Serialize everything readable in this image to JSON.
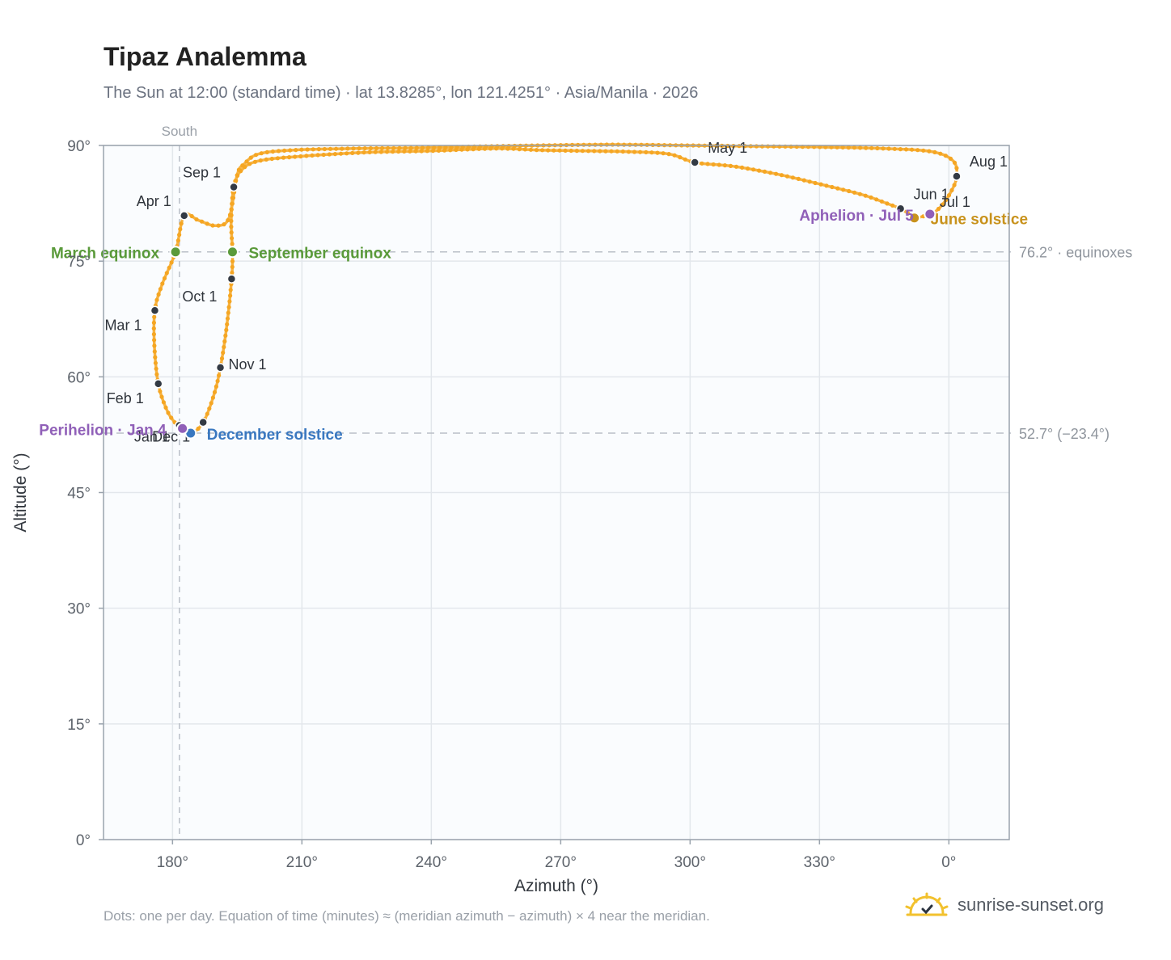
{
  "title": "Tipaz Analemma",
  "subtitle": "The Sun at 12:00 (standard time) · lat 13.8285°, lon 121.4251° · Asia/Manila · 2026",
  "footnote": "Dots: one per day. Equation of time (minutes) ≈ (meridian azimuth − azimuth) × 4 near the meridian.",
  "brand": {
    "text": "sunrise-sunset.org",
    "icon": "sun-logo-icon",
    "color": "#f2c12e"
  },
  "colors": {
    "path": "#f5a623",
    "month_dot": "#333a44",
    "equinox": "#5a9a3a",
    "december_solstice": "#3a78c0",
    "june_solstice": "#c8921c",
    "perihelion": "#9060b8",
    "reference_line": "#b9bfc7",
    "plot_background": "#fafcfe"
  },
  "chart_data": {
    "type": "scatter",
    "xlabel": "Azimuth (°)",
    "ylabel": "Altitude (°)",
    "x_ticks": [
      "180°",
      "210°",
      "240°",
      "270°",
      "300°",
      "330°",
      "0°"
    ],
    "y_ticks": [
      "0°",
      "15°",
      "30°",
      "45°",
      "60°",
      "75°",
      "90°"
    ],
    "xlim": [
      164,
      374
    ],
    "ylim": [
      0,
      90
    ],
    "grid": true,
    "meridian": {
      "azimuth": 181.6,
      "label": "South"
    },
    "reference_lines": [
      {
        "altitude": 76.2,
        "label": "76.2° · equinoxes"
      },
      {
        "altitude": 52.7,
        "label": "52.7° (−23.4°)"
      }
    ],
    "month_points": [
      {
        "label": "Jan 1",
        "az": 181.6,
        "alt": 53.7
      },
      {
        "label": "Feb 1",
        "az": 176.7,
        "alt": 59.1
      },
      {
        "label": "Mar 1",
        "az": 175.9,
        "alt": 68.6
      },
      {
        "label": "Apr 1",
        "az": 182.7,
        "alt": 80.9
      },
      {
        "label": "May 1",
        "az": 301.1,
        "alt": 87.8
      },
      {
        "label": "Jun 1",
        "az": 348.8,
        "alt": 81.8
      },
      {
        "label": "Jul 1",
        "az": 355.6,
        "alt": 81.0
      },
      {
        "label": "Aug 1",
        "az": 361.8,
        "alt": 86.0
      },
      {
        "label": "Sep 1",
        "az": 194.2,
        "alt": 84.6
      },
      {
        "label": "Oct 1",
        "az": 193.7,
        "alt": 72.7
      },
      {
        "label": "Nov 1",
        "az": 191.1,
        "alt": 61.2
      },
      {
        "label": "Dec 1",
        "az": 187.1,
        "alt": 54.1
      }
    ],
    "events": [
      {
        "label": "March equinox",
        "az": 180.7,
        "alt": 76.2,
        "color": "#5a9a3a"
      },
      {
        "label": "September equinox",
        "az": 193.9,
        "alt": 76.2,
        "color": "#5a9a3a"
      },
      {
        "label": "December solstice",
        "az": 184.2,
        "alt": 52.7,
        "color": "#3a78c0"
      },
      {
        "label": "June solstice",
        "az": 352.0,
        "alt": 80.6,
        "color": "#c8921c"
      },
      {
        "label": "Perihelion · Jan 4",
        "az": 182.3,
        "alt": 53.3,
        "color": "#9060b8"
      },
      {
        "label": "Aphelion · Jul 5",
        "az": 355.6,
        "alt": 81.1,
        "color": "#9060b8"
      }
    ],
    "path": [
      [
        181.6,
        53.7
      ],
      [
        184.2,
        52.7
      ],
      [
        187.1,
        54.1
      ],
      [
        189.5,
        57.5
      ],
      [
        191.1,
        61.2
      ],
      [
        192.6,
        66.7
      ],
      [
        193.7,
        72.7
      ],
      [
        193.9,
        76.2
      ],
      [
        193.6,
        80.2
      ],
      [
        194.2,
        84.6
      ],
      [
        196.0,
        86.8
      ],
      [
        200.0,
        88.0
      ],
      [
        210.0,
        88.6
      ],
      [
        225.0,
        89.1
      ],
      [
        240.0,
        89.3
      ],
      [
        255.0,
        89.6
      ],
      [
        265.0,
        89.4
      ],
      [
        275.0,
        89.3
      ],
      [
        285.0,
        89.2
      ],
      [
        295.0,
        88.9
      ],
      [
        301.1,
        87.8
      ],
      [
        310.0,
        87.3
      ],
      [
        320.0,
        86.3
      ],
      [
        330.0,
        85.0
      ],
      [
        340.0,
        83.6
      ],
      [
        346.0,
        82.4
      ],
      [
        348.8,
        81.8
      ],
      [
        351.0,
        81.0
      ],
      [
        352.0,
        80.6
      ],
      [
        354.0,
        80.8
      ],
      [
        355.6,
        81.0
      ],
      [
        358.0,
        82.0
      ],
      [
        360.5,
        84.0
      ],
      [
        361.8,
        86.0
      ],
      [
        361.0,
        88.0
      ],
      [
        356.0,
        89.2
      ],
      [
        345.0,
        89.6
      ],
      [
        330.0,
        89.8
      ],
      [
        315.0,
        89.9
      ],
      [
        300.0,
        90.0
      ],
      [
        280.0,
        90.1
      ],
      [
        254.0,
        89.9
      ],
      [
        238.0,
        89.7
      ],
      [
        222.0,
        89.6
      ],
      [
        208.0,
        89.4
      ],
      [
        200.0,
        88.9
      ],
      [
        196.6,
        87.6
      ],
      [
        195.0,
        86.2
      ],
      [
        193.1,
        80.6
      ],
      [
        190.0,
        79.6
      ],
      [
        186.0,
        80.3
      ],
      [
        182.7,
        80.9
      ],
      [
        180.7,
        76.2
      ],
      [
        177.6,
        72.0
      ],
      [
        175.9,
        68.6
      ],
      [
        175.8,
        64.0
      ],
      [
        176.7,
        59.1
      ],
      [
        178.6,
        55.8
      ],
      [
        180.5,
        54.1
      ],
      [
        181.6,
        53.7
      ]
    ]
  }
}
